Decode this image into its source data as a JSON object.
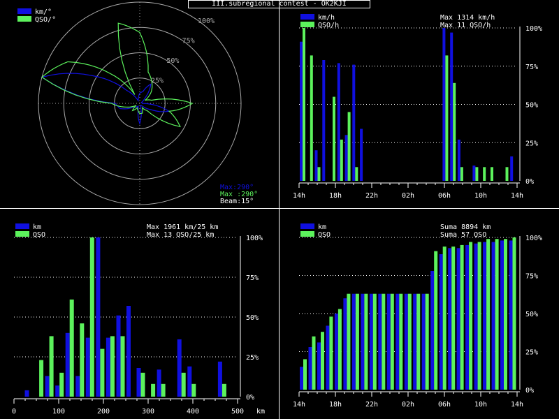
{
  "title": "III.subregional contest - OK2KJI",
  "colors": {
    "blue": "#1010e0",
    "green": "#5cf25c",
    "white": "#ffffff",
    "grid": "#aaaaaa",
    "bg": "#000000"
  },
  "chart_data": [
    {
      "type": "polar",
      "legend": [
        {
          "name": "km/°",
          "color": "#1010e0"
        },
        {
          "name": "QSO/°",
          "color": "#5cf25c"
        }
      ],
      "ring_labels": [
        "25%",
        "50%",
        "75%",
        "100%"
      ],
      "info_lines": [
        {
          "text": "Max:290°",
          "color": "#1010e0"
        },
        {
          "text": "Max :290°",
          "color": "#5cf25c"
        },
        {
          "text": "Beam:15°",
          "color": "#ffffff"
        }
      ],
      "angles": [
        0,
        15,
        30,
        45,
        60,
        75,
        90,
        105,
        120,
        135,
        150,
        165,
        180,
        195,
        210,
        225,
        240,
        255,
        270,
        285,
        300,
        315,
        330,
        345
      ],
      "series": [
        {
          "name": "km/°",
          "values": [
            0.1,
            0.12,
            0.22,
            0.07,
            0.02,
            0.02,
            0.03,
            0.3,
            0.12,
            0.04,
            0.02,
            0.03,
            0.2,
            0.05,
            0.03,
            0.05,
            0.08,
            0.2,
            0.24,
            1.0,
            0.55,
            0.18,
            0.03,
            0.05
          ]
        },
        {
          "name": "QSO/°",
          "values": [
            0.7,
            0.32,
            0.24,
            0.16,
            0.06,
            0.12,
            0.52,
            0.3,
            0.46,
            0.1,
            0.05,
            0.1,
            0.1,
            0.07,
            0.05,
            0.1,
            0.04,
            0.14,
            0.28,
            1.0,
            0.82,
            0.42,
            0.1,
            0.82
          ]
        }
      ]
    },
    {
      "type": "bar",
      "legend": [
        {
          "name": "km/h",
          "color": "#1010e0"
        },
        {
          "name": "QSO/h",
          "color": "#5cf25c"
        }
      ],
      "max_lines": [
        "Max  1314 km/h",
        "Max   11 QSO/h"
      ],
      "y_ticks": [
        "0%",
        "25%",
        "50%",
        "75%",
        "100%"
      ],
      "x_tick_labels": [
        "14h",
        "18h",
        "22h",
        "02h",
        "06h",
        "10h",
        "14h"
      ],
      "series": [
        {
          "name": "km/h",
          "values": [
            91,
            0,
            20,
            79,
            0,
            77,
            30,
            76,
            34,
            0,
            0,
            0,
            0,
            0,
            0,
            0,
            0,
            0,
            0,
            100,
            97,
            27,
            0,
            10,
            0,
            0,
            0,
            0,
            16
          ]
        },
        {
          "name": "QSO/h",
          "values": [
            100,
            82,
            9,
            0,
            55,
            27,
            45,
            9,
            0,
            0,
            0,
            0,
            0,
            0,
            0,
            0,
            0,
            0,
            0,
            82,
            64,
            9,
            0,
            9,
            9,
            9,
            0,
            9,
            0
          ]
        }
      ]
    },
    {
      "type": "bar",
      "legend": [
        {
          "name": "km",
          "color": "#1010e0"
        },
        {
          "name": "QSO",
          "color": "#5cf25c"
        }
      ],
      "max_lines": [
        "Max  1961 km/25 km",
        "Max   13 QSO/25 km"
      ],
      "y_ticks": [
        "0%",
        "25%",
        "50%",
        "75%",
        "100%"
      ],
      "x_tick_labels": [
        "0",
        "100",
        "200",
        "300",
        "400",
        "500"
      ],
      "x_unit": "km",
      "series": [
        {
          "name": "km",
          "values": [
            0,
            4,
            0,
            13,
            7,
            40,
            13,
            37,
            100,
            37,
            51,
            57,
            18,
            0,
            17,
            0,
            36,
            19,
            0,
            0,
            22,
            0
          ]
        },
        {
          "name": "QSO",
          "values": [
            0,
            0,
            23,
            38,
            15,
            61,
            46,
            100,
            30,
            38,
            38,
            0,
            15,
            8,
            8,
            0,
            15,
            8,
            0,
            0,
            8,
            0
          ]
        }
      ]
    },
    {
      "type": "bar",
      "legend": [
        {
          "name": "km",
          "color": "#1010e0"
        },
        {
          "name": "QSO",
          "color": "#5cf25c"
        }
      ],
      "max_lines": [
        "Suma   8894 km",
        "Suma    57 QSO"
      ],
      "y_ticks": [
        "0%",
        "25%",
        "50%",
        "75%",
        "100%"
      ],
      "x_tick_labels": [
        "14h",
        "18h",
        "22h",
        "02h",
        "06h",
        "10h",
        "14h"
      ],
      "series": [
        {
          "name": "km",
          "values": [
            15,
            28,
            31,
            42,
            50,
            60,
            63,
            63,
            63,
            63,
            63,
            63,
            63,
            63,
            63,
            78,
            89,
            93,
            93,
            95,
            96,
            97,
            97,
            98,
            98
          ]
        },
        {
          "name": "QSO",
          "values": [
            20,
            35,
            38,
            48,
            53,
            63,
            63,
            63,
            63,
            63,
            63,
            63,
            63,
            63,
            63,
            91,
            94,
            94,
            95,
            97,
            97,
            99,
            99,
            99,
            100
          ]
        }
      ]
    }
  ]
}
